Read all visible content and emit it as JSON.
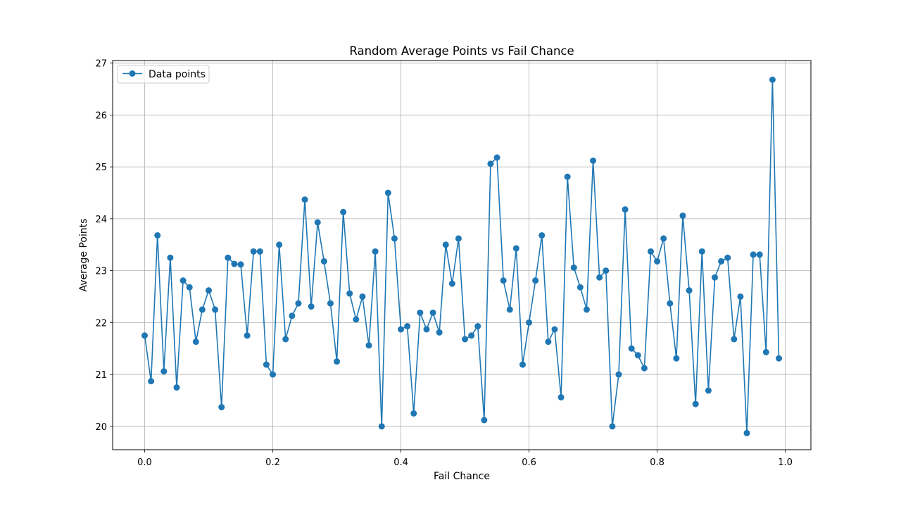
{
  "chart_data": {
    "type": "line",
    "title": "Random Average Points vs Fail Chance",
    "xlabel": "Fail Chance",
    "ylabel": "Average Points",
    "xlim": [
      -0.05,
      1.04
    ],
    "ylim": [
      19.55,
      27.05
    ],
    "xticks": [
      "0.0",
      "0.2",
      "0.4",
      "0.6",
      "0.8",
      "1.0"
    ],
    "yticks": [
      "20",
      "21",
      "22",
      "23",
      "24",
      "25",
      "26",
      "27"
    ],
    "grid": true,
    "legend_position": "top-left",
    "color": "#1f77b4",
    "marker": "circle",
    "series": [
      {
        "name": "Data points",
        "x": [
          0.0,
          0.01,
          0.02,
          0.03,
          0.04,
          0.05,
          0.06,
          0.07,
          0.08,
          0.09,
          0.1,
          0.11,
          0.12,
          0.13,
          0.14,
          0.15,
          0.16,
          0.17,
          0.18,
          0.19,
          0.2,
          0.21,
          0.22,
          0.23,
          0.24,
          0.25,
          0.26,
          0.27,
          0.28,
          0.29,
          0.3,
          0.31,
          0.32,
          0.33,
          0.34,
          0.35,
          0.36,
          0.37,
          0.38,
          0.39,
          0.4,
          0.41,
          0.42,
          0.43,
          0.44,
          0.45,
          0.46,
          0.47,
          0.48,
          0.49,
          0.5,
          0.51,
          0.52,
          0.53,
          0.54,
          0.55,
          0.56,
          0.57,
          0.58,
          0.59,
          0.6,
          0.61,
          0.62,
          0.63,
          0.64,
          0.65,
          0.66,
          0.67,
          0.68,
          0.69,
          0.7,
          0.71,
          0.72,
          0.73,
          0.74,
          0.75,
          0.76,
          0.77,
          0.78,
          0.79,
          0.8,
          0.81,
          0.82,
          0.83,
          0.84,
          0.85,
          0.86,
          0.87,
          0.88,
          0.89,
          0.9,
          0.91,
          0.92,
          0.93,
          0.94,
          0.95,
          0.96,
          0.97,
          0.98,
          0.99
        ],
        "values": [
          21.75,
          20.87,
          23.68,
          21.06,
          23.25,
          20.75,
          22.81,
          22.68,
          21.63,
          22.25,
          22.62,
          22.25,
          20.37,
          23.25,
          23.13,
          23.12,
          21.75,
          23.37,
          23.37,
          21.19,
          21.0,
          23.5,
          21.68,
          22.13,
          22.37,
          24.37,
          22.31,
          23.93,
          23.18,
          22.37,
          21.25,
          24.13,
          22.56,
          22.06,
          22.5,
          21.56,
          23.37,
          20.0,
          24.5,
          23.62,
          21.87,
          21.93,
          20.25,
          22.19,
          21.87,
          22.19,
          21.81,
          23.5,
          22.75,
          23.62,
          21.68,
          21.75,
          21.93,
          20.12,
          25.06,
          25.18,
          22.81,
          22.25,
          23.43,
          21.19,
          22.0,
          22.81,
          23.68,
          21.63,
          21.87,
          20.56,
          24.81,
          23.06,
          22.68,
          22.25,
          25.12,
          22.87,
          23.0,
          20.0,
          21.0,
          24.18,
          21.5,
          21.37,
          21.12,
          23.37,
          23.18,
          23.62,
          22.37,
          21.31,
          24.06,
          22.62,
          20.43,
          23.37,
          20.69,
          22.87,
          23.18,
          23.25,
          21.68,
          22.5,
          19.87,
          23.31,
          23.31,
          21.43,
          26.68,
          21.31
        ]
      }
    ]
  }
}
